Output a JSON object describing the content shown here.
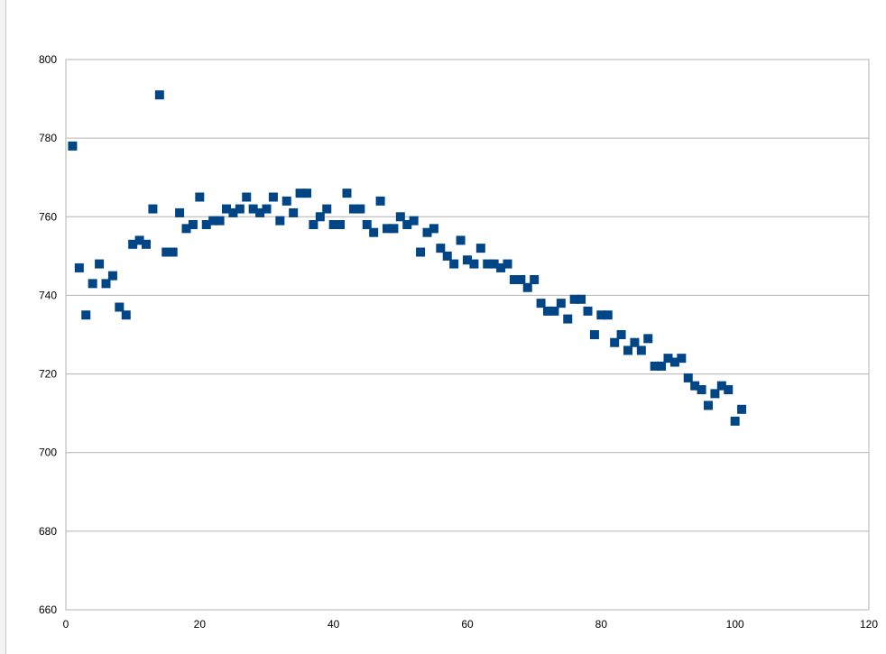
{
  "chart_data": {
    "type": "scatter",
    "title": "",
    "xlabel": "",
    "ylabel": "",
    "xlim": [
      0,
      120
    ],
    "ylim": [
      660,
      800
    ],
    "x_ticks": [
      0,
      20,
      40,
      60,
      80,
      100,
      120
    ],
    "y_ticks": [
      660,
      680,
      700,
      720,
      740,
      760,
      780,
      800
    ],
    "grid": "horizontal",
    "legend": "none",
    "marker": "square",
    "color": "#004586",
    "series": [
      {
        "x": [
          1,
          2,
          3,
          4,
          5,
          6,
          7,
          8,
          9,
          10,
          11,
          12,
          13,
          14,
          15,
          16,
          17,
          18,
          19,
          20,
          21,
          22,
          23,
          24,
          25,
          26,
          27,
          28,
          29,
          30,
          31,
          32,
          33,
          34,
          35,
          36,
          37,
          38,
          39,
          40,
          41,
          42,
          43,
          44,
          45,
          46,
          47,
          48,
          49,
          50,
          51,
          52,
          53,
          54,
          55,
          56,
          57,
          58,
          59,
          60,
          61,
          62,
          63,
          64,
          65,
          66,
          67,
          68,
          69,
          70,
          71,
          72,
          73,
          74,
          75,
          76,
          77,
          78,
          79,
          80,
          81,
          82,
          83,
          84,
          85,
          86,
          87,
          88,
          89,
          90,
          91,
          92,
          93,
          94,
          95,
          96,
          97,
          98,
          99,
          100,
          101
        ],
        "y": [
          778,
          747,
          735,
          743,
          748,
          743,
          745,
          737,
          735,
          753,
          754,
          753,
          762,
          791,
          751,
          751,
          761,
          757,
          758,
          765,
          758,
          759,
          759,
          762,
          761,
          762,
          765,
          762,
          761,
          762,
          765,
          759,
          764,
          761,
          766,
          766,
          758,
          760,
          762,
          758,
          758,
          766,
          762,
          762,
          758,
          756,
          764,
          757,
          757,
          760,
          758,
          759,
          751,
          756,
          757,
          752,
          750,
          748,
          754,
          749,
          748,
          752,
          748,
          748,
          747,
          748,
          744,
          744,
          742,
          744,
          738,
          736,
          736,
          738,
          734,
          739,
          739,
          736,
          730,
          735,
          735,
          728,
          730,
          726,
          728,
          726,
          729,
          722,
          722,
          724,
          723,
          724,
          719,
          717,
          716,
          712,
          715,
          717,
          716,
          708,
          711
        ]
      }
    ]
  }
}
